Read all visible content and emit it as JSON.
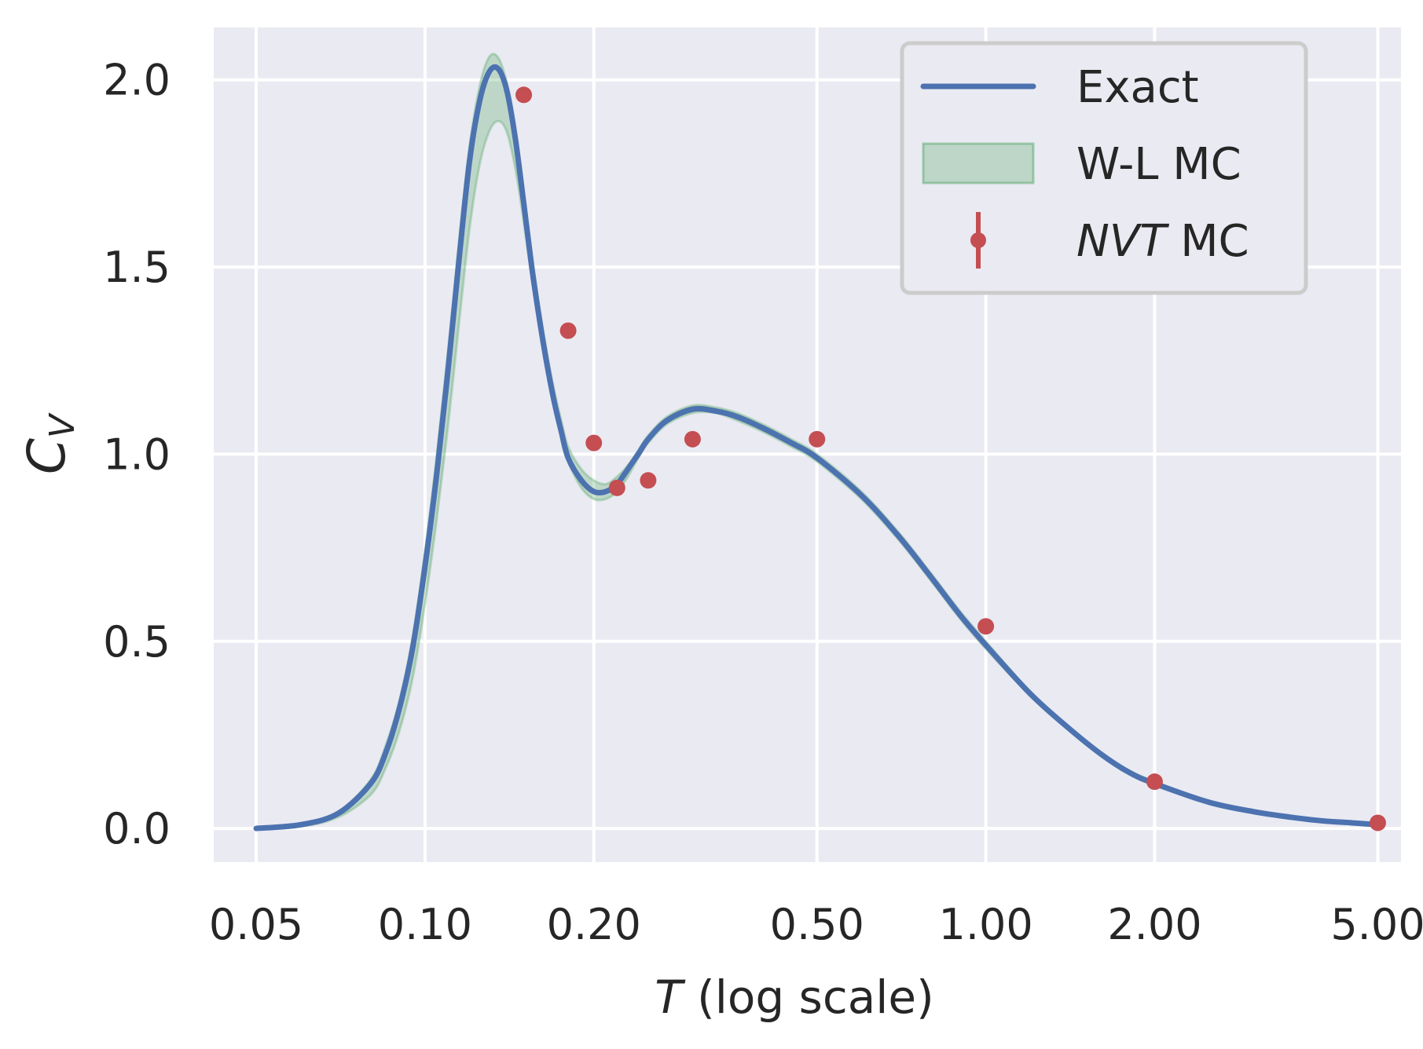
{
  "chart_data": {
    "type": "line",
    "title": "",
    "xlabel": {
      "italic": "T",
      "rest": " (log scale)"
    },
    "ylabel": {
      "main": "C",
      "sub": "V"
    },
    "x_scale": "log",
    "xlim": [
      0.042,
      5.5
    ],
    "ylim": [
      -0.09,
      2.14
    ],
    "x_ticks": [
      0.05,
      0.1,
      0.2,
      0.5,
      1.0,
      2.0,
      5.0
    ],
    "x_tick_labels": [
      "0.05",
      "0.10",
      "0.20",
      "0.50",
      "1.00",
      "2.00",
      "5.00"
    ],
    "y_ticks": [
      0.0,
      0.5,
      1.0,
      1.5,
      2.0
    ],
    "y_tick_labels": [
      "0.0",
      "0.5",
      "1.0",
      "1.5",
      "2.0"
    ],
    "grid": true,
    "legend_position": "top-right",
    "colors": {
      "background": "#eaeaf2",
      "grid": "#ffffff",
      "exact": "#4c72b0",
      "band_fill": "#55a868",
      "nvt": "#c44e52"
    },
    "series": [
      {
        "name": "Exact",
        "kind": "line",
        "x": [
          0.05,
          0.06,
          0.07,
          0.08,
          0.085,
          0.09,
          0.095,
          0.1,
          0.105,
          0.11,
          0.115,
          0.12,
          0.125,
          0.13,
          0.135,
          0.14,
          0.145,
          0.15,
          0.155,
          0.16,
          0.165,
          0.17,
          0.175,
          0.18,
          0.19,
          0.2,
          0.21,
          0.22,
          0.23,
          0.24,
          0.25,
          0.27,
          0.3,
          0.33,
          0.36,
          0.4,
          0.45,
          0.5,
          0.6,
          0.7,
          0.8,
          0.9,
          1.0,
          1.2,
          1.4,
          1.6,
          1.8,
          2.0,
          2.5,
          3.0,
          3.5,
          4.0,
          4.5,
          5.0
        ],
        "y": [
          0.0,
          0.01,
          0.04,
          0.12,
          0.2,
          0.32,
          0.48,
          0.7,
          0.95,
          1.23,
          1.52,
          1.78,
          1.94,
          2.02,
          2.03,
          1.97,
          1.84,
          1.67,
          1.5,
          1.36,
          1.24,
          1.14,
          1.06,
          0.99,
          0.93,
          0.9,
          0.9,
          0.92,
          0.96,
          1.0,
          1.04,
          1.09,
          1.12,
          1.115,
          1.1,
          1.07,
          1.03,
          0.99,
          0.89,
          0.78,
          0.67,
          0.57,
          0.49,
          0.36,
          0.27,
          0.2,
          0.15,
          0.12,
          0.07,
          0.045,
          0.03,
          0.02,
          0.015,
          0.01
        ]
      },
      {
        "name": "W-L MC",
        "kind": "band",
        "x": [
          0.05,
          0.06,
          0.07,
          0.08,
          0.085,
          0.09,
          0.095,
          0.1,
          0.105,
          0.11,
          0.115,
          0.12,
          0.125,
          0.13,
          0.135,
          0.14,
          0.145,
          0.15,
          0.155,
          0.16,
          0.165,
          0.17,
          0.175,
          0.18,
          0.19,
          0.2,
          0.21,
          0.22,
          0.23,
          0.24,
          0.25,
          0.27,
          0.3,
          0.33,
          0.36,
          0.4,
          0.45,
          0.5,
          0.6,
          0.7,
          0.8,
          0.9,
          1.0,
          1.2,
          1.4,
          1.6,
          1.8,
          2.0,
          2.5,
          3.0,
          3.5,
          4.0,
          4.5,
          5.0
        ],
        "lower": [
          0.0,
          0.005,
          0.03,
          0.09,
          0.16,
          0.26,
          0.4,
          0.6,
          0.83,
          1.08,
          1.35,
          1.6,
          1.77,
          1.86,
          1.89,
          1.86,
          1.76,
          1.62,
          1.47,
          1.34,
          1.23,
          1.13,
          1.05,
          0.98,
          0.91,
          0.88,
          0.88,
          0.9,
          0.94,
          0.99,
          1.03,
          1.08,
          1.11,
          1.11,
          1.09,
          1.06,
          1.02,
          0.98,
          0.88,
          0.77,
          0.66,
          0.56,
          0.48,
          0.355,
          0.265,
          0.195,
          0.145,
          0.115,
          0.068,
          0.043,
          0.029,
          0.019,
          0.014,
          0.009
        ],
        "upper": [
          0.0,
          0.012,
          0.045,
          0.13,
          0.22,
          0.34,
          0.51,
          0.74,
          1.0,
          1.28,
          1.57,
          1.82,
          1.98,
          2.06,
          2.06,
          1.99,
          1.86,
          1.69,
          1.53,
          1.39,
          1.27,
          1.17,
          1.09,
          1.02,
          0.96,
          0.93,
          0.92,
          0.94,
          0.97,
          1.01,
          1.05,
          1.1,
          1.13,
          1.125,
          1.11,
          1.08,
          1.04,
          1.0,
          0.9,
          0.79,
          0.68,
          0.58,
          0.5,
          0.365,
          0.275,
          0.205,
          0.155,
          0.125,
          0.072,
          0.047,
          0.031,
          0.021,
          0.016,
          0.011
        ]
      },
      {
        "name": "NVT MC",
        "name_italic": "NVT",
        "name_rest": " MC",
        "kind": "scatter_errorbar",
        "x": [
          0.15,
          0.18,
          0.2,
          0.22,
          0.25,
          0.3,
          0.5,
          1.0,
          2.0,
          5.0
        ],
        "y": [
          1.96,
          1.33,
          1.03,
          0.91,
          0.93,
          1.04,
          1.04,
          0.54,
          0.125,
          0.015
        ]
      }
    ]
  }
}
